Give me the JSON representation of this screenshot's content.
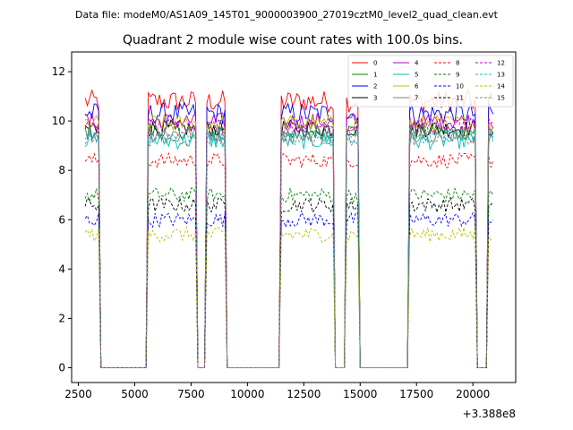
{
  "chart_data": {
    "type": "line",
    "suptitle": "Data file: modeM0/AS1A09_145T01_9000003900_27019cztM0_level2_quad_clean.evt",
    "title": "Quadrant 2 module wise count rates with 100.0s bins.",
    "xlabel": "",
    "ylabel": "",
    "x_offset_label": "+3.388e8",
    "xlim": [
      2200,
      21900
    ],
    "ylim": [
      -0.6,
      12.8
    ],
    "x_ticks": [
      2500,
      5000,
      7500,
      10000,
      12500,
      15000,
      17500,
      20000
    ],
    "y_ticks": [
      0,
      2,
      4,
      6,
      8,
      10,
      12
    ],
    "grid": false,
    "legend_position": "top-right",
    "legend_columns": 4,
    "active_segments": [
      [
        2800,
        3400
      ],
      [
        5600,
        7700
      ],
      [
        8200,
        9000
      ],
      [
        11500,
        13800
      ],
      [
        14400,
        14900
      ],
      [
        17200,
        20100
      ],
      [
        20700,
        20900
      ]
    ],
    "series": [
      {
        "name": "0",
        "color": "#ff0000",
        "dash": "solid",
        "level": 10.8,
        "amp": 0.45
      },
      {
        "name": "1",
        "color": "#008000",
        "dash": "solid",
        "level": 9.6,
        "amp": 0.35
      },
      {
        "name": "2",
        "color": "#0000ff",
        "dash": "solid",
        "level": 10.3,
        "amp": 0.45
      },
      {
        "name": "3",
        "color": "#000000",
        "dash": "solid",
        "level": 9.7,
        "amp": 0.35
      },
      {
        "name": "4",
        "color": "#bf00bf",
        "dash": "solid",
        "level": 10.0,
        "amp": 0.35
      },
      {
        "name": "5",
        "color": "#00bfbf",
        "dash": "solid",
        "level": 9.2,
        "amp": 0.35
      },
      {
        "name": "6",
        "color": "#bfbf00",
        "dash": "solid",
        "level": 9.9,
        "amp": 0.35
      },
      {
        "name": "7",
        "color": "#808080",
        "dash": "solid",
        "level": 9.5,
        "amp": 0.35
      },
      {
        "name": "8",
        "color": "#ff0000",
        "dash": "dashed",
        "level": 8.4,
        "amp": 0.3
      },
      {
        "name": "9",
        "color": "#008000",
        "dash": "dashed",
        "level": 7.0,
        "amp": 0.3
      },
      {
        "name": "10",
        "color": "#0000ff",
        "dash": "dashed",
        "level": 6.0,
        "amp": 0.3
      },
      {
        "name": "11",
        "color": "#000000",
        "dash": "dashed",
        "level": 6.6,
        "amp": 0.3
      },
      {
        "name": "12",
        "color": "#bf00bf",
        "dash": "dashed",
        "level": 9.8,
        "amp": 0.3
      },
      {
        "name": "13",
        "color": "#00bfbf",
        "dash": "dashed",
        "level": 9.4,
        "amp": 0.3
      },
      {
        "name": "14",
        "color": "#bfbf00",
        "dash": "dashed",
        "level": 5.4,
        "amp": 0.3
      },
      {
        "name": "15",
        "color": "#808080",
        "dash": "dashed",
        "level": 9.3,
        "amp": 0.3
      }
    ]
  }
}
